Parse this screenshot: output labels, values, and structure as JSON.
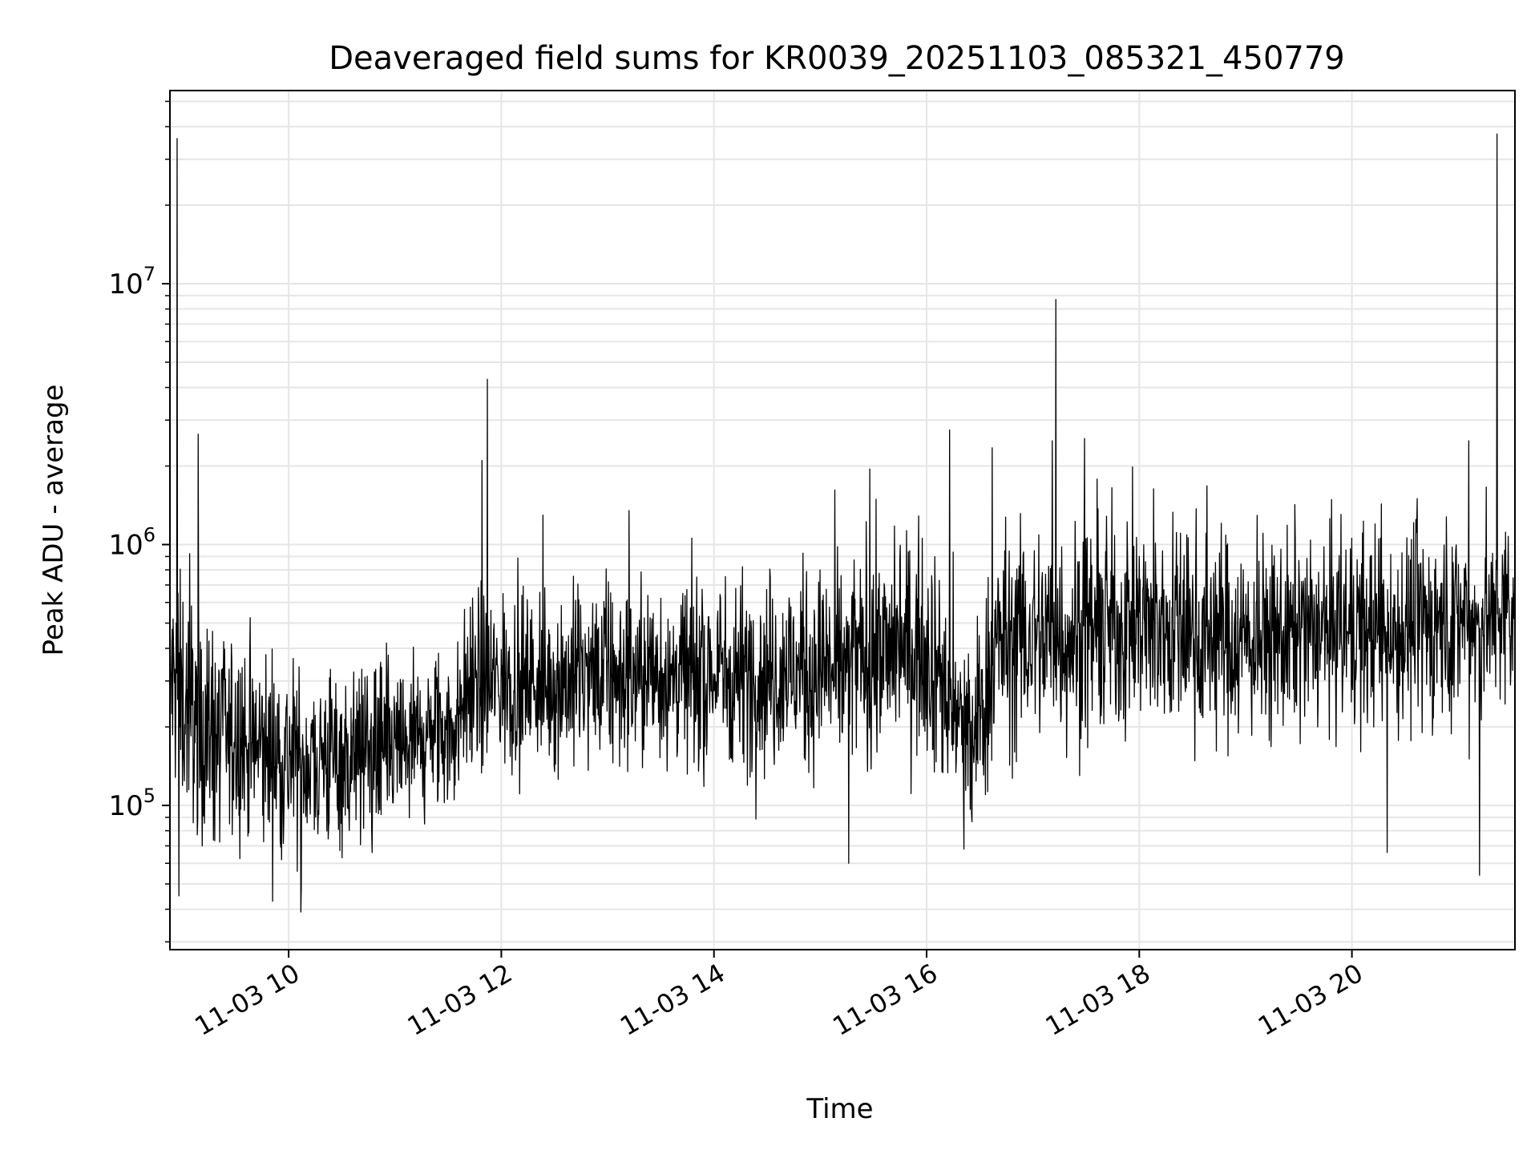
{
  "chart_data": {
    "type": "line",
    "title": "Deaveraged field sums for KR0039_20251103_085321_450779",
    "xlabel": "Time",
    "ylabel": "Peak ADU - average",
    "yscale": "log",
    "grid": true,
    "line_color": "#000000",
    "grid_color": "#e6e6e6",
    "xlim": [
      "2025-11-03 08:53",
      "2025-11-03 21:32"
    ],
    "ylim": [
      28000,
      55000000
    ],
    "x_ticks": [
      {
        "value": "2025-11-03 10:00",
        "label": "11-03 10"
      },
      {
        "value": "2025-11-03 12:00",
        "label": "11-03 12"
      },
      {
        "value": "2025-11-03 14:00",
        "label": "11-03 14"
      },
      {
        "value": "2025-11-03 16:00",
        "label": "11-03 16"
      },
      {
        "value": "2025-11-03 18:00",
        "label": "11-03 18"
      },
      {
        "value": "2025-11-03 20:00",
        "label": "11-03 20"
      }
    ],
    "y_ticks": [
      {
        "value": 100000,
        "base": "10",
        "exp": "5"
      },
      {
        "value": 1000000,
        "base": "10",
        "exp": "6"
      },
      {
        "value": 10000000,
        "base": "10",
        "exp": "7"
      }
    ],
    "trend": [
      {
        "t": "2025-11-03 08:53",
        "level": 300000,
        "spread": 0.55
      },
      {
        "t": "2025-11-03 09:15",
        "level": 190000,
        "spread": 0.55
      },
      {
        "t": "2025-11-03 10:00",
        "level": 150000,
        "spread": 0.5
      },
      {
        "t": "2025-11-03 11:00",
        "level": 160000,
        "spread": 0.45
      },
      {
        "t": "2025-11-03 11:36",
        "level": 200000,
        "spread": 0.4
      },
      {
        "t": "2025-11-03 11:40",
        "level": 290000,
        "spread": 0.45
      },
      {
        "t": "2025-11-03 13:00",
        "level": 310000,
        "spread": 0.45
      },
      {
        "t": "2025-11-03 15:00",
        "level": 330000,
        "spread": 0.5
      },
      {
        "t": "2025-11-03 16:00",
        "level": 420000,
        "spread": 0.55
      },
      {
        "t": "2025-11-03 16:25",
        "level": 160000,
        "spread": 0.5
      },
      {
        "t": "2025-11-03 16:40",
        "level": 420000,
        "spread": 0.55
      },
      {
        "t": "2025-11-03 18:00",
        "level": 500000,
        "spread": 0.55
      },
      {
        "t": "2025-11-03 19:00",
        "level": 430000,
        "spread": 0.5
      },
      {
        "t": "2025-11-03 20:00",
        "level": 460000,
        "spread": 0.5
      },
      {
        "t": "2025-11-03 21:32",
        "level": 520000,
        "spread": 0.5
      }
    ],
    "spikes": [
      {
        "t": "2025-11-03 08:57",
        "value": 36000000
      },
      {
        "t": "2025-11-03 09:09",
        "value": 2650000
      },
      {
        "t": "2025-11-03 11:49",
        "value": 2100000
      },
      {
        "t": "2025-11-03 11:52",
        "value": 4300000
      },
      {
        "t": "2025-11-03 13:12",
        "value": 1350000
      },
      {
        "t": "2025-11-03 15:28",
        "value": 1950000
      },
      {
        "t": "2025-11-03 16:13",
        "value": 2750000
      },
      {
        "t": "2025-11-03 16:37",
        "value": 2350000
      },
      {
        "t": "2025-11-03 17:11",
        "value": 2500000
      },
      {
        "t": "2025-11-03 17:13",
        "value": 8700000
      },
      {
        "t": "2025-11-03 17:29",
        "value": 2550000
      },
      {
        "t": "2025-11-03 21:06",
        "value": 2500000
      },
      {
        "t": "2025-11-03 21:22",
        "value": 37500000
      }
    ],
    "dips": [
      {
        "t": "2025-11-03 08:58",
        "value": 45000
      },
      {
        "t": "2025-11-03 10:07",
        "value": 39000
      },
      {
        "t": "2025-11-03 15:16",
        "value": 60000
      },
      {
        "t": "2025-11-03 16:21",
        "value": 68000
      },
      {
        "t": "2025-11-03 20:20",
        "value": 66000
      },
      {
        "t": "2025-11-03 21:12",
        "value": 54000
      }
    ]
  }
}
